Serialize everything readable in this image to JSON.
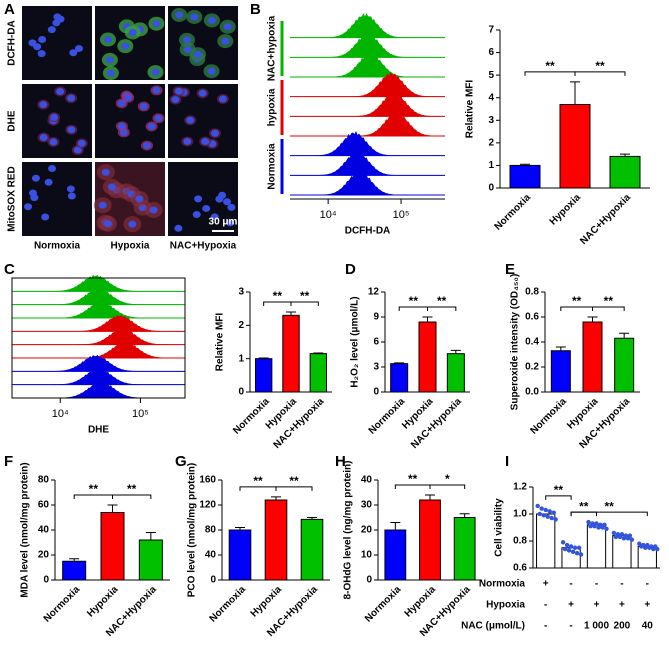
{
  "panel_a": {
    "label": "A",
    "rows": [
      "DCFH-DA",
      "DHE",
      "MitoSOX RED"
    ],
    "columns": [
      "Normoxia",
      "Hypoxia",
      "NAC+Hypoxia"
    ],
    "scale_bar": "30 μm"
  },
  "chart_data": [
    {
      "type": "flow",
      "label": "B",
      "xlabel": "DCFH-DA",
      "log": true,
      "xlim": [
        3000,
        400000
      ],
      "xticks": [
        {
          "value": 10000,
          "label": "10⁴"
        },
        {
          "value": 100000,
          "label": "10⁵"
        }
      ],
      "groups": [
        {
          "name": "NAC+hypoxia",
          "color": "#00b400"
        },
        {
          "name": "hypoxia",
          "color": "#e00000"
        },
        {
          "name": "Normoxia",
          "color": "#0000e0"
        }
      ]
    },
    {
      "type": "bar",
      "ylabel": "Relative MFI",
      "categories": [
        "Normoxia",
        "Hypoxia",
        "NAC+Hypoxia"
      ],
      "values": [
        1.0,
        3.7,
        1.4
      ],
      "errors": [
        0.05,
        1.0,
        0.1
      ],
      "colors": [
        "#0000ff",
        "#ff0000",
        "#00c000"
      ],
      "ylim": [
        0,
        7
      ],
      "yticks": [
        0,
        1,
        2,
        3,
        4,
        5,
        6,
        7
      ],
      "annotations": [
        {
          "text": "**",
          "from": 0,
          "to": 1
        },
        {
          "text": "**",
          "from": 1,
          "to": 2
        }
      ]
    },
    {
      "type": "flow",
      "label": "C",
      "xlabel": "DHE",
      "log": true,
      "xlim": [
        2500,
        360000
      ],
      "xticks": [
        {
          "value": 10000,
          "label": "10⁴"
        },
        {
          "value": 100000,
          "label": "10⁵"
        }
      ],
      "colors": [
        "#00b400",
        "#e00000",
        "#0000e0"
      ]
    },
    {
      "type": "bar",
      "ylabel": "Relative MFI",
      "categories": [
        "Normoxia",
        "Hypoxia",
        "NAC+Hypoxia"
      ],
      "values": [
        1.0,
        2.3,
        1.15
      ],
      "errors": [
        0.02,
        0.1,
        0.02
      ],
      "colors": [
        "#0000ff",
        "#ff0000",
        "#00c000"
      ],
      "ylim": [
        0,
        3
      ],
      "yticks": [
        0,
        1,
        2,
        3
      ],
      "annotations": [
        {
          "text": "**",
          "from": 0,
          "to": 1
        },
        {
          "text": "**",
          "from": 1,
          "to": 2
        }
      ]
    },
    {
      "type": "bar",
      "label": "D",
      "ylabel": "H₂O₂ level (μmol/L)",
      "categories": [
        "Normoxia",
        "Hypoxia",
        "NAC+Hypoxia"
      ],
      "values": [
        3.4,
        8.4,
        4.6
      ],
      "errors": [
        0.1,
        0.6,
        0.4
      ],
      "colors": [
        "#0000ff",
        "#ff0000",
        "#00c000"
      ],
      "ylim": [
        0,
        12
      ],
      "yticks": [
        0,
        3,
        6,
        9,
        12
      ],
      "annotations": [
        {
          "text": "**",
          "from": 0,
          "to": 1
        },
        {
          "text": "**",
          "from": 1,
          "to": 2
        }
      ]
    },
    {
      "type": "bar",
      "label": "E",
      "ylabel": "Superoxide intensity (OD₄₅₀)",
      "categories": [
        "Normoxia",
        "Hypoxia",
        "NAC+Hypoxia"
      ],
      "values": [
        0.33,
        0.56,
        0.43
      ],
      "errors": [
        0.03,
        0.04,
        0.04
      ],
      "colors": [
        "#0000ff",
        "#ff0000",
        "#00c000"
      ],
      "ylim": [
        0,
        0.8
      ],
      "yticks": [
        {
          "value": 0,
          "label": "0.0"
        },
        0.2,
        0.4,
        0.6,
        0.8
      ],
      "annotations": [
        {
          "text": "**",
          "from": 0,
          "to": 1
        },
        {
          "text": "**",
          "from": 1,
          "to": 2
        }
      ]
    },
    {
      "type": "bar",
      "label": "F",
      "ylabel": "MDA level (nmol/mg protein)",
      "categories": [
        "Normoxia",
        "Hypoxia",
        "NAC+Hypoxia"
      ],
      "values": [
        15,
        54,
        32
      ],
      "errors": [
        2,
        6,
        6
      ],
      "colors": [
        "#0000ff",
        "#ff0000",
        "#00c000"
      ],
      "ylim": [
        0,
        80
      ],
      "yticks": [
        0,
        20,
        40,
        60,
        80
      ],
      "annotations": [
        {
          "text": "**",
          "from": 0,
          "to": 1
        },
        {
          "text": "**",
          "from": 1,
          "to": 2
        }
      ]
    },
    {
      "type": "bar",
      "label": "G",
      "ylabel": "PCO level (nmol/mg protein)",
      "categories": [
        "Normoxia",
        "Hypoxia",
        "NAC+Hypoxia"
      ],
      "values": [
        80,
        128,
        97
      ],
      "errors": [
        4,
        5,
        3
      ],
      "colors": [
        "#0000ff",
        "#ff0000",
        "#00c000"
      ],
      "ylim": [
        0,
        160
      ],
      "yticks": [
        0,
        40,
        80,
        120,
        160
      ],
      "annotations": [
        {
          "text": "**",
          "from": 0,
          "to": 1
        },
        {
          "text": "**",
          "from": 1,
          "to": 2
        }
      ]
    },
    {
      "type": "bar",
      "label": "H",
      "ylabel": "8-OHdG level (ng/mg protein)",
      "categories": [
        "Normoxia",
        "Hypoxia",
        "NAC+Hypoxia"
      ],
      "values": [
        20,
        32,
        25
      ],
      "errors": [
        3,
        2,
        1.5
      ],
      "colors": [
        "#0000ff",
        "#ff0000",
        "#00c000"
      ],
      "ylim": [
        0,
        40
      ],
      "yticks": [
        0,
        10,
        20,
        30,
        40
      ],
      "annotations": [
        {
          "text": "**",
          "from": 0,
          "to": 1
        },
        {
          "text": "*",
          "from": 1,
          "to": 2
        }
      ]
    },
    {
      "type": "bar_scatter",
      "label": "I",
      "ylabel": "Cell viability",
      "values": [
        1.0,
        0.75,
        0.92,
        0.84,
        0.76
      ],
      "color": "#ffffff",
      "point_color": "#3355dd",
      "points": [
        [
          1.06,
          1.04,
          1.03,
          1.02,
          1.01,
          1.0,
          0.99,
          0.98,
          0.97,
          0.96
        ],
        [
          0.79,
          0.77,
          0.76,
          0.75,
          0.75,
          0.74,
          0.73,
          0.72,
          0.71,
          0.7
        ],
        [
          0.94,
          0.93,
          0.93,
          0.92,
          0.92,
          0.91,
          0.91,
          0.9,
          0.9,
          0.89
        ],
        [
          0.86,
          0.85,
          0.85,
          0.84,
          0.84,
          0.83,
          0.83,
          0.82,
          0.82,
          0.81
        ],
        [
          0.78,
          0.77,
          0.77,
          0.76,
          0.76,
          0.76,
          0.75,
          0.75,
          0.74,
          0.74
        ]
      ],
      "ylim": [
        0.6,
        1.2
      ],
      "yticks": [
        0.6,
        0.8,
        {
          "value": 1.0,
          "label": "1.0"
        },
        1.2
      ],
      "annotations": [
        {
          "text": "**",
          "from": 0,
          "to": 1
        },
        {
          "text": "**",
          "from": 1,
          "to": 2
        },
        {
          "text": "**",
          "from": 1,
          "to": 4
        }
      ],
      "table": [
        {
          "name": "Normoxia",
          "cells": [
            "+",
            "-",
            "-",
            "-",
            "-"
          ]
        },
        {
          "name": "Hypoxia",
          "cells": [
            "-",
            "+",
            "+",
            "+",
            "+"
          ]
        },
        {
          "name": "NAC (μmol/L)",
          "cells": [
            "-",
            "-",
            "1 000",
            "200",
            "40"
          ]
        }
      ]
    }
  ]
}
